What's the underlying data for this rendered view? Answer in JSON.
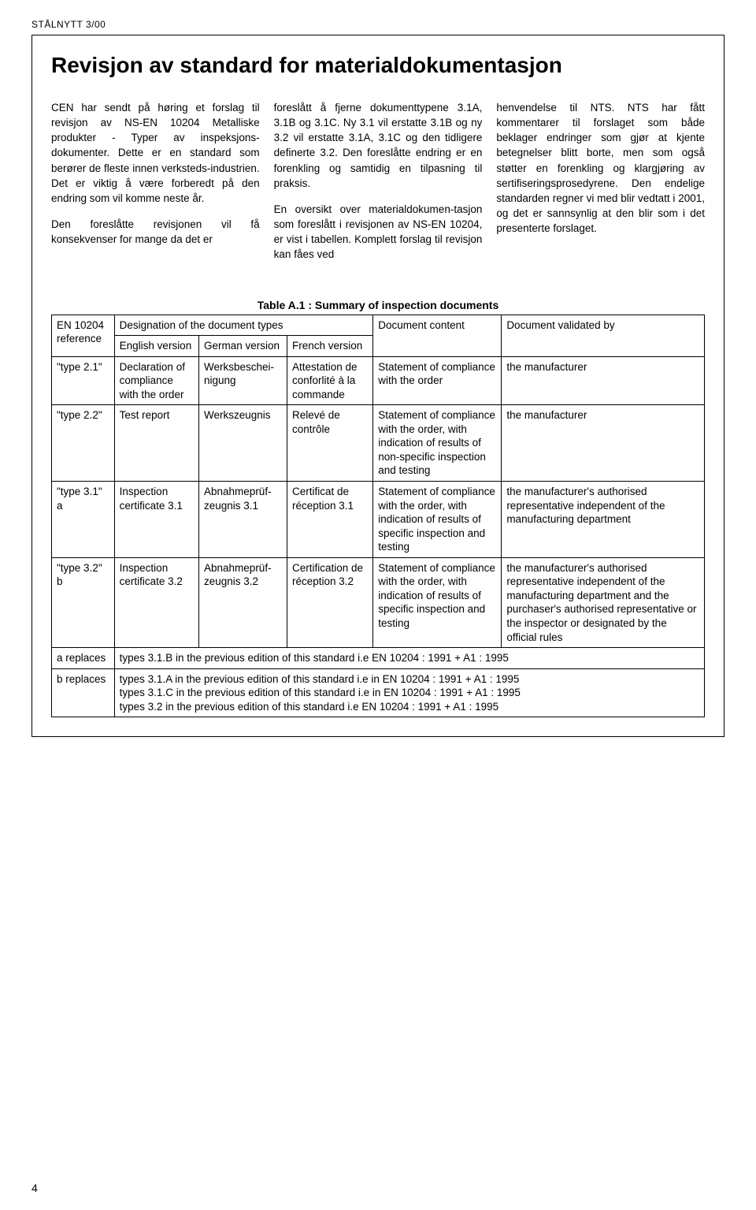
{
  "header": "STÅLNYTT 3/00",
  "title": "Revisjon av standard for materialdokumentasjon",
  "col1_p1": "CEN har sendt på høring et forslag til revisjon av NS-EN 10204 Metalliske produkter - Typer av inspeksjons-dokumenter. Dette er en standard som berører de fleste innen verksteds-industrien. Det er viktig å være forberedt på den endring som vil komme neste år.",
  "col1_p2": "Den foreslåtte revisjonen vil få konsekvenser for mange da det er",
  "col2_p1": "foreslått å fjerne dokumenttypene 3.1A, 3.1B og 3.1C. Ny 3.1 vil erstatte 3.1B og ny 3.2 vil erstatte 3.1A, 3.1C og den tidligere definerte 3.2. Den foreslåtte endring er en forenkling og samtidig en tilpasning til praksis.",
  "col2_p2": "En oversikt over materialdokumen-tasjon som foreslått i revisjonen av NS-EN 10204, er vist i tabellen. Komplett forslag til revisjon kan fåes ved",
  "col3_p1": "henvendelse til NTS. NTS har fått kommentarer til forslaget som både beklager endringer som gjør at kjente betegnelser blitt borte, men som også støtter en forenkling og klargjøring av sertifiseringsprosedyrene. Den endelige standarden regner vi med blir vedtatt i 2001, og det er sannsynlig at den blir som i det presenterte forslaget.",
  "table_caption": "Table A.1 : Summary of inspection documents",
  "table": {
    "h_ref": "EN 10204 reference",
    "h_designation": "Designation of the document types",
    "h_english": "English version",
    "h_german": "German version",
    "h_french": "French version",
    "h_content": "Document content",
    "h_validated": "Document validated by",
    "rows": [
      {
        "ref": "\"type 2.1\"",
        "english": "Declaration of compliance with the order",
        "german": "Werksbeschei-nigung",
        "french": "Attestation de conforlité à la commande",
        "content": "Statement of compliance with the order",
        "validated": "the manufacturer"
      },
      {
        "ref": "\"type 2.2\"",
        "english": "Test report",
        "german": "Werkszeugnis",
        "french": "Relevé de contrôle",
        "content": "Statement of compliance with the order, with indication of results of non-specific inspection and testing",
        "validated": "the manufacturer"
      },
      {
        "ref": "\"type 3.1\" a",
        "english": "Inspection certificate 3.1",
        "german": "Abnahmeprüf-zeugnis 3.1",
        "french": "Certificat de réception 3.1",
        "content": "Statement of compliance with the order, with indication of results of specific inspection and testing",
        "validated": "the manufacturer's authorised representative independent of the manufacturing department"
      },
      {
        "ref": "\"type 3.2\" b",
        "english": "Inspection certificate 3.2",
        "german": "Abnahmeprüf-zeugnis 3.2",
        "french": "Certification de réception 3.2",
        "content": "Statement of compliance with the order, with indication of results of specific inspection and testing",
        "validated": "the manufacturer's authorised representative independent of the manufacturing department and the purchaser's authorised representative or the inspector or designated by the official rules"
      }
    ],
    "note_a_label": "a replaces",
    "note_a": "types 3.1.B in the previous edition of this standard i.e EN 10204 : 1991 + A1 : 1995",
    "note_b_label": "b replaces",
    "note_b_1": "types 3.1.A  in the previous edition of this standard i.e in EN 10204 : 1991 + A1 : 1995",
    "note_b_2": "types 3.1.C in the previous edition of this standard i.e  in EN 10204 : 1991 + A1 : 1995",
    "note_b_3": "types 3.2 in the previous edition of this standard i.e EN 10204 : 1991 + A1 : 1995"
  },
  "page_number": "4"
}
